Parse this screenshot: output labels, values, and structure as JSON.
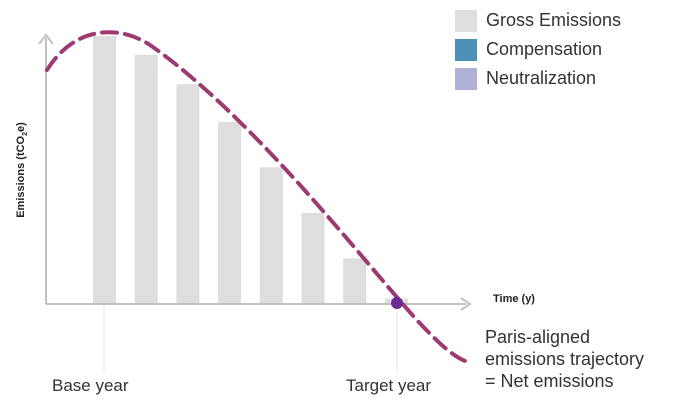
{
  "colors": {
    "gross": "#dedede",
    "compensation": "#4d91b8",
    "neutralization": "#b0b0d8",
    "trajectory": "#9c3a72",
    "target_dot": "#6a2a92",
    "axis": "#c2c2c2"
  },
  "legend": [
    {
      "label": "Gross Emissions",
      "color": "#dedede"
    },
    {
      "label": "Compensation",
      "color": "#4d91b8"
    },
    {
      "label": "Neutralization",
      "color": "#b0b0d8"
    }
  ],
  "chart_data": {
    "type": "bar",
    "ylabel": "Emissions (tCO",
    "ylabel_sub": "2",
    "ylabel_end": "e)",
    "xlabel": "Time (y)",
    "grid": false,
    "legend_position": "top-right",
    "ylim": [
      0,
      100
    ],
    "series": [
      {
        "values": [
          100,
          93,
          82,
          68,
          51,
          34,
          17,
          2
        ]
      }
    ],
    "category_labels": [
      "Base year",
      "Target year"
    ],
    "trajectory_label": [
      "Paris-aligned",
      "emissions trajectory",
      "= Net emissions"
    ]
  }
}
